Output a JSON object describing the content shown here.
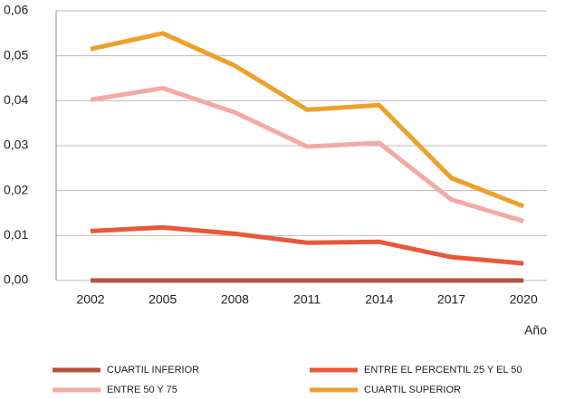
{
  "chart_data": {
    "type": "line",
    "x_label": "Año",
    "categories": [
      "2002",
      "2005",
      "2008",
      "2011",
      "2014",
      "2017",
      "2020"
    ],
    "series": [
      {
        "name": "CUARTIL INFERIOR",
        "color": "#b5533c",
        "values": [
          0,
          0,
          0,
          0,
          0,
          0,
          0
        ]
      },
      {
        "name": "ENTRE EL PERCENTIL 25 Y EL 50",
        "color": "#e8583a",
        "values": [
          0.011,
          0.0118,
          0.0104,
          0.0084,
          0.0086,
          0.0052,
          0.0038
        ]
      },
      {
        "name": "ENTRE 50 Y 75",
        "color": "#f4aaa4",
        "values": [
          0.0402,
          0.0428,
          0.0374,
          0.0298,
          0.0306,
          0.018,
          0.0132
        ]
      },
      {
        "name": "CUARTIL SUPERIOR",
        "color": "#eea02a",
        "values": [
          0.0515,
          0.055,
          0.0478,
          0.038,
          0.039,
          0.0228,
          0.0165
        ]
      }
    ],
    "ylim": [
      0,
      0.06
    ],
    "yticks": [
      {
        "value": 0,
        "label": "0,00"
      },
      {
        "value": 0.01,
        "label": "0,01"
      },
      {
        "value": 0.02,
        "label": "0,02"
      },
      {
        "value": 0.03,
        "label": "0,03"
      },
      {
        "value": 0.04,
        "label": "0,04"
      },
      {
        "value": 0.05,
        "label": "0,05"
      },
      {
        "value": 0.06,
        "label": "0,06"
      }
    ],
    "grid": true
  }
}
